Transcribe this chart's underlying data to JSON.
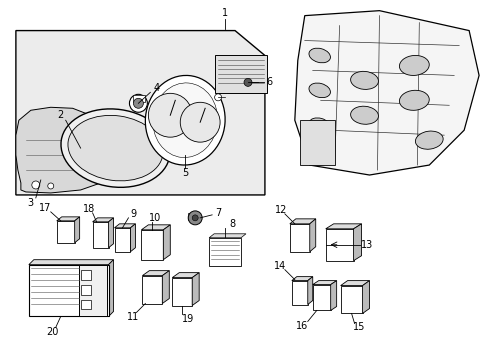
{
  "background_color": "#ffffff",
  "figure_size": [
    4.89,
    3.6
  ],
  "dpi": 100,
  "line_color": "#000000",
  "gray_fill": "#e8e8e8",
  "light_gray": "#d0d0d0",
  "mid_gray": "#a0a0a0",
  "label_fs": 7,
  "lw_thin": 0.5,
  "lw_med": 0.8,
  "lw_thick": 1.0
}
